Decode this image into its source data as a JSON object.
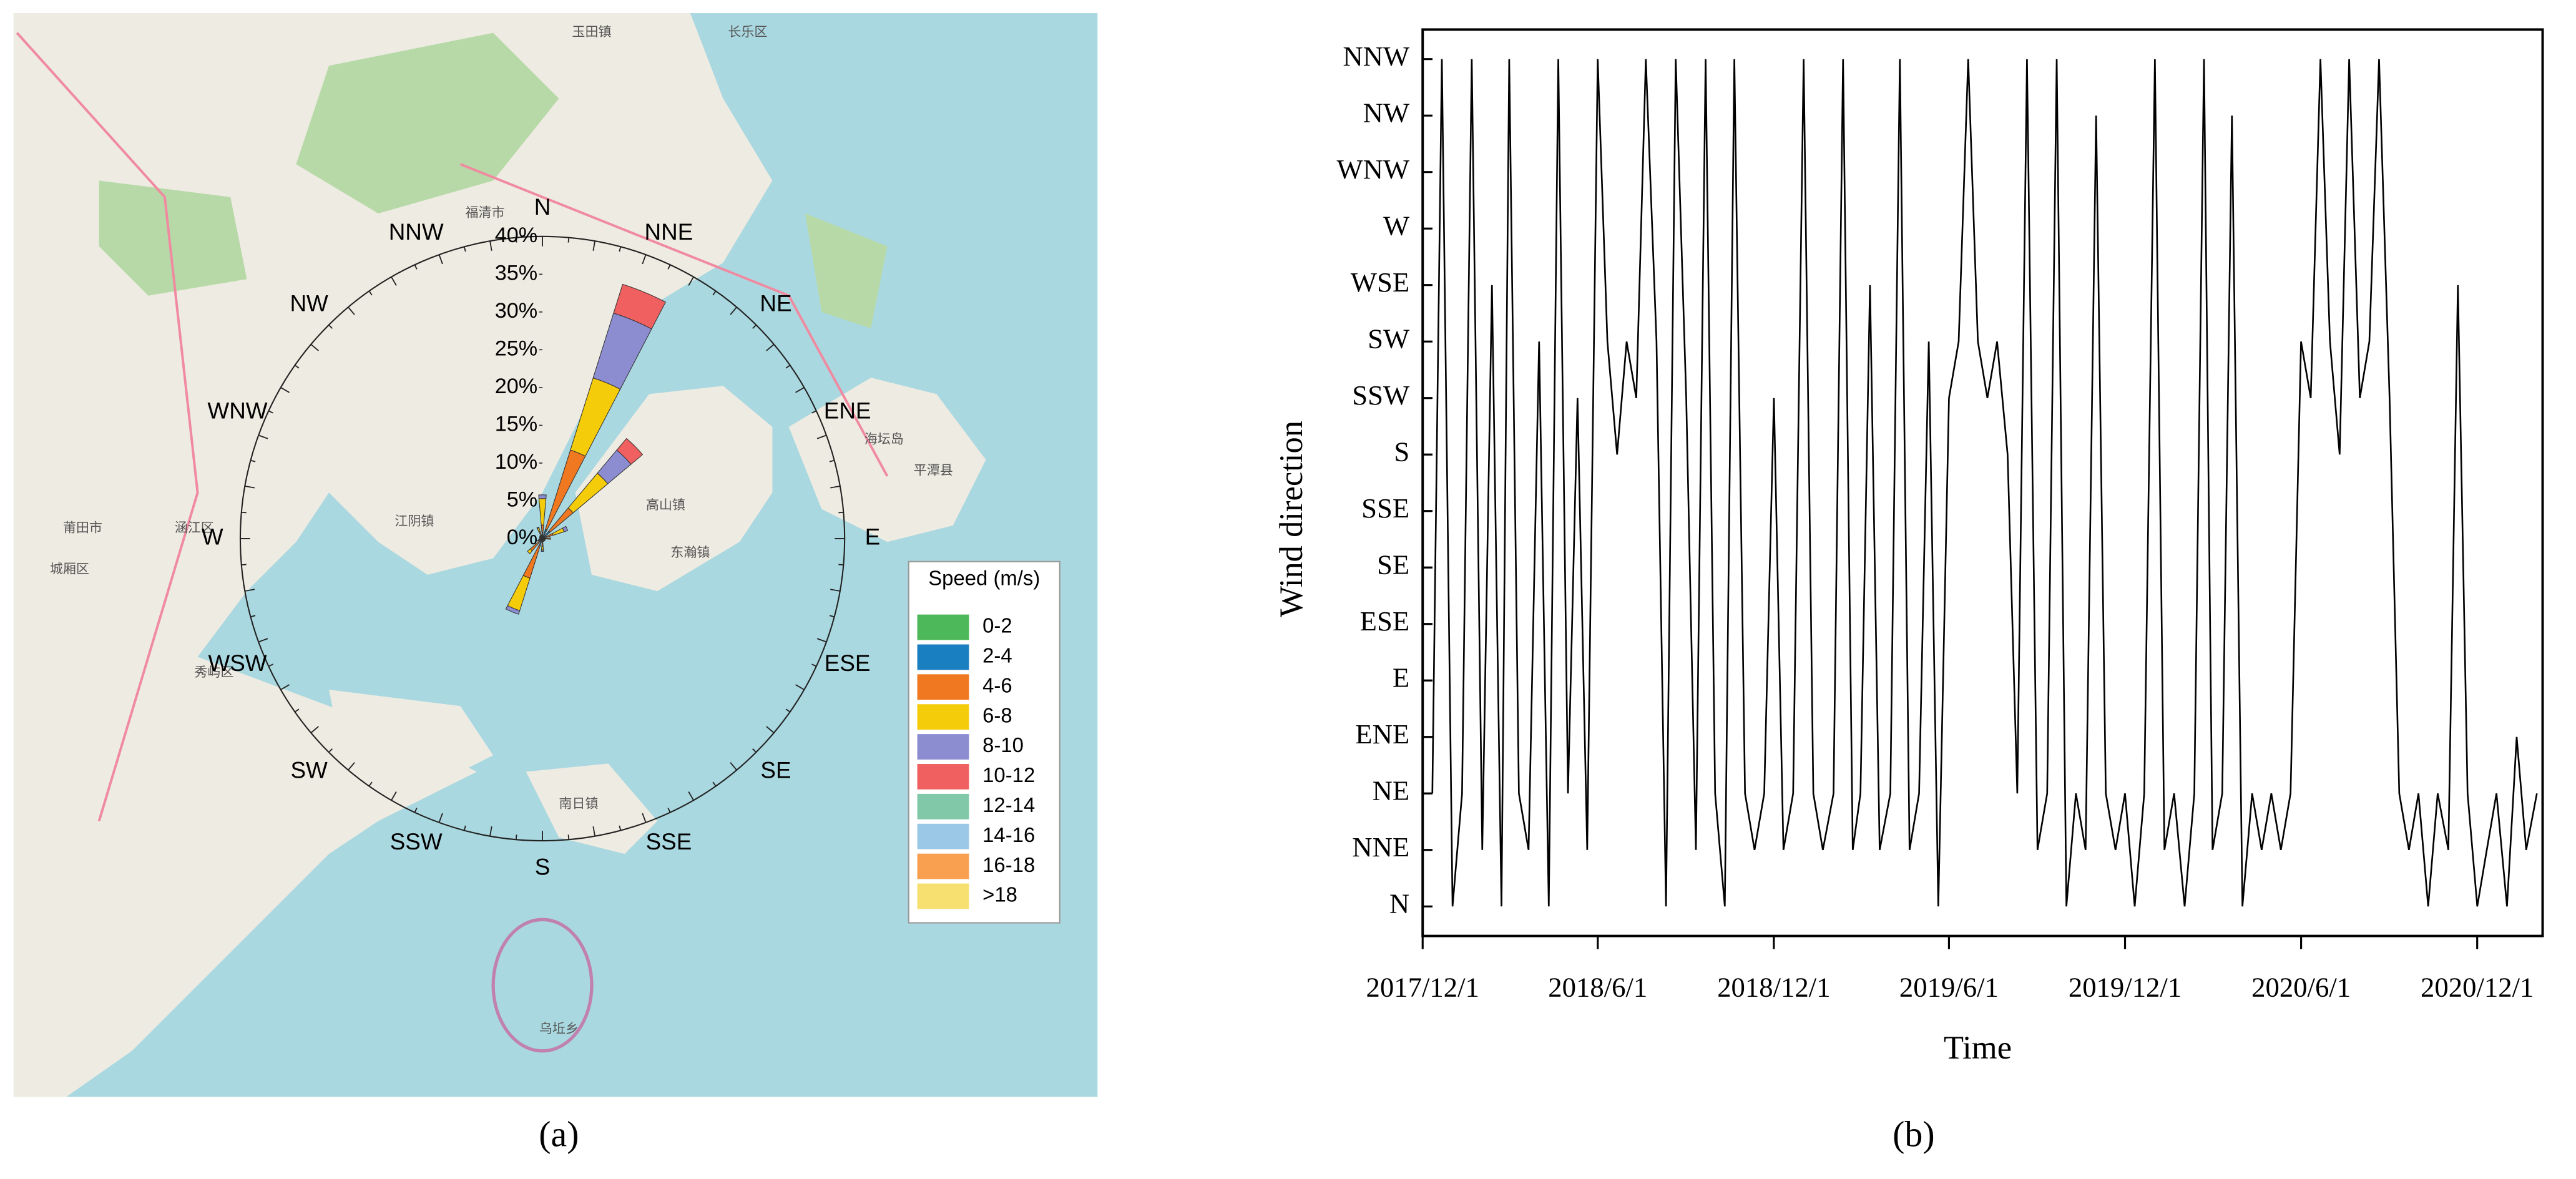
{
  "chart_data": [
    {
      "type": "windrose",
      "panel_label": "(a)",
      "directions": [
        "N",
        "NNE",
        "NE",
        "ENE",
        "E",
        "ESE",
        "SE",
        "SSE",
        "S",
        "SSW",
        "SW",
        "WSW",
        "W",
        "WNW",
        "NW",
        "NNW"
      ],
      "rlim": [
        0,
        40
      ],
      "rticks": [
        {
          "value": 0,
          "label": "0%"
        },
        {
          "value": 5,
          "label": "5%"
        },
        {
          "value": 10,
          "label": "10%"
        },
        {
          "value": 15,
          "label": "15%"
        },
        {
          "value": 20,
          "label": "20%"
        },
        {
          "value": 25,
          "label": "25%"
        },
        {
          "value": 30,
          "label": "30%"
        },
        {
          "value": 35,
          "label": "35%"
        },
        {
          "value": 40,
          "label": "40%"
        }
      ],
      "legend_title": "Speed (m/s)",
      "legend_position": "lower right",
      "series": [
        {
          "name": "0-2",
          "color": "#4db85a",
          "values": [
            0.3,
            0.3,
            0.3,
            0.2,
            0.2,
            0.1,
            0.1,
            0.1,
            0.2,
            0.2,
            0.2,
            0.1,
            0.1,
            0.1,
            0.1,
            0.2
          ]
        },
        {
          "name": "2-4",
          "color": "#1a7fc1",
          "values": [
            0.5,
            1,
            1,
            0.3,
            0.2,
            0.1,
            0.1,
            0.1,
            0.3,
            0.8,
            0.4,
            0.2,
            0.1,
            0.1,
            0.1,
            0.3
          ]
        },
        {
          "name": "4-6",
          "color": "#f07820",
          "values": [
            1,
            11,
            4,
            1,
            0.5,
            0.2,
            0.2,
            0.2,
            0.5,
            4.5,
            1.5,
            0.3,
            0.2,
            0.2,
            0.2,
            0.5
          ]
        },
        {
          "name": "6-8",
          "color": "#f5cc0a",
          "values": [
            3.5,
            10,
            6,
            1.5,
            0.2,
            0,
            0,
            0,
            0.5,
            4.5,
            0.5,
            0.1,
            0,
            0,
            0.1,
            0.5
          ]
        },
        {
          "name": "8-10",
          "color": "#8c8cd0",
          "values": [
            0.5,
            9,
            4,
            0.5,
            0,
            0,
            0,
            0,
            0.2,
            0.5,
            0,
            0,
            0,
            0,
            0,
            0.1
          ]
        },
        {
          "name": "10-12",
          "color": "#f06060",
          "values": [
            0,
            4,
            2,
            0,
            0,
            0,
            0,
            0,
            0,
            0,
            0,
            0,
            0,
            0,
            0,
            0
          ]
        },
        {
          "name": "12-14",
          "color": "#80c8a8",
          "values": [
            0,
            0,
            0,
            0,
            0,
            0,
            0,
            0,
            0,
            0,
            0,
            0,
            0,
            0,
            0,
            0
          ]
        },
        {
          "name": "14-16",
          "color": "#9cc8e8",
          "values": [
            0,
            0,
            0,
            0,
            0,
            0,
            0,
            0,
            0,
            0,
            0,
            0,
            0,
            0,
            0,
            0
          ]
        },
        {
          "name": "16-18",
          "color": "#f8a050",
          "values": [
            0,
            0,
            0,
            0,
            0,
            0,
            0,
            0,
            0,
            0,
            0,
            0,
            0,
            0,
            0,
            0
          ]
        },
        {
          "name": ">18",
          "color": "#f8e070",
          "values": [
            0,
            0,
            0,
            0,
            0,
            0,
            0,
            0,
            0,
            0,
            0,
            0,
            0,
            0,
            0,
            0
          ]
        }
      ],
      "map_labels": [
        {
          "text": "福清市",
          "x": 295,
          "y": 130
        },
        {
          "text": "莆田市",
          "x": 50,
          "y": 322
        },
        {
          "text": "涵江区",
          "x": 118,
          "y": 322
        },
        {
          "text": "城厢区",
          "x": 42,
          "y": 347
        },
        {
          "text": "秀屿区",
          "x": 130,
          "y": 410
        },
        {
          "text": "江阴镇",
          "x": 252,
          "y": 318
        },
        {
          "text": "高山镇",
          "x": 405,
          "y": 308
        },
        {
          "text": "东瀚镇",
          "x": 420,
          "y": 337
        },
        {
          "text": "平潭县",
          "x": 568,
          "y": 287
        },
        {
          "text": "海坛岛",
          "x": 538,
          "y": 268
        },
        {
          "text": "南日镇",
          "x": 352,
          "y": 490
        },
        {
          "text": "乌坵乡",
          "x": 340,
          "y": 627
        },
        {
          "text": "玉田镇",
          "x": 360,
          "y": 20
        },
        {
          "text": "长乐区",
          "x": 455,
          "y": 20
        }
      ]
    },
    {
      "type": "line",
      "panel_label": "(b)",
      "x_label": "Time",
      "y_label": "Wind direction",
      "color": "#000000",
      "xlim": [
        "2017/12/1",
        "2021/2/7"
      ],
      "xticks": [
        "2017/12/1",
        "2018/6/1",
        "2018/12/1",
        "2019/6/1",
        "2019/12/1",
        "2020/6/1",
        "2020/12/1"
      ],
      "yticks": [
        "N",
        "NNE",
        "NE",
        "ENE",
        "E",
        "ESE",
        "SE",
        "SSE",
        "S",
        "SSW",
        "SW",
        "WSE",
        "W",
        "WNW",
        "NW",
        "NNW"
      ],
      "x": [
        "2017/12/11",
        "2017/12/21",
        "2018/1/1",
        "2018/1/11",
        "2018/1/21",
        "2018/2/1",
        "2018/2/11",
        "2018/2/21",
        "2018/3/1",
        "2018/3/11",
        "2018/3/21",
        "2018/4/1",
        "2018/4/11",
        "2018/4/21",
        "2018/5/1",
        "2018/5/11",
        "2018/5/21",
        "2018/6/1",
        "2018/6/11",
        "2018/6/21",
        "2018/7/1",
        "2018/7/11",
        "2018/7/21",
        "2018/8/1",
        "2018/8/11",
        "2018/8/21",
        "2018/9/1",
        "2018/9/11",
        "2018/9/21",
        "2018/10/1",
        "2018/10/11",
        "2018/10/21",
        "2018/11/1",
        "2018/11/11",
        "2018/11/21",
        "2018/12/1",
        "2018/12/11",
        "2018/12/21",
        "2019/1/1",
        "2019/1/11",
        "2019/1/21",
        "2019/2/1",
        "2019/2/11",
        "2019/2/21",
        "2019/3/1",
        "2019/3/11",
        "2019/3/21",
        "2019/4/1",
        "2019/4/11",
        "2019/4/21",
        "2019/5/1",
        "2019/5/11",
        "2019/5/21",
        "2019/6/1",
        "2019/6/11",
        "2019/6/21",
        "2019/7/1",
        "2019/7/11",
        "2019/7/21",
        "2019/8/1",
        "2019/8/11",
        "2019/8/21",
        "2019/9/1",
        "2019/9/11",
        "2019/9/21",
        "2019/10/1",
        "2019/10/11",
        "2019/10/21",
        "2019/11/1",
        "2019/11/11",
        "2019/11/21",
        "2019/12/1",
        "2019/12/11",
        "2019/12/21",
        "2020/1/1",
        "2020/1/11",
        "2020/1/21",
        "2020/2/1",
        "2020/2/11",
        "2020/2/21",
        "2020/3/1",
        "2020/3/11",
        "2020/3/21",
        "2020/4/1",
        "2020/4/11",
        "2020/4/21",
        "2020/5/1",
        "2020/5/11",
        "2020/5/21",
        "2020/6/1",
        "2020/6/11",
        "2020/6/21",
        "2020/7/1",
        "2020/7/11",
        "2020/7/21",
        "2020/8/1",
        "2020/8/11",
        "2020/8/21",
        "2020/9/1",
        "2020/9/11",
        "2020/9/21",
        "2020/10/1",
        "2020/10/11",
        "2020/10/21",
        "2020/11/1",
        "2020/11/11",
        "2020/11/21",
        "2020/12/1",
        "2020/12/11",
        "2020/12/21",
        "2021/1/1",
        "2021/1/11",
        "2021/1/21",
        "2021/2/1"
      ],
      "values": [
        "NE",
        "NNW",
        "N",
        "NE",
        "NNW",
        "NNE",
        "WSE",
        "N",
        "NNW",
        "NE",
        "NNE",
        "SW",
        "N",
        "NNW",
        "NE",
        "SSW",
        "NNE",
        "NNW",
        "SW",
        "S",
        "SW",
        "SSW",
        "NNW",
        "SW",
        "N",
        "NNW",
        "SSW",
        "NNE",
        "NNW",
        "NE",
        "N",
        "NNW",
        "NE",
        "NNE",
        "NE",
        "SSW",
        "NNE",
        "NE",
        "NNW",
        "NE",
        "NNE",
        "NE",
        "NNW",
        "NNE",
        "NE",
        "WSE",
        "NNE",
        "NE",
        "NNW",
        "NNE",
        "NE",
        "SW",
        "N",
        "SSW",
        "SW",
        "NNW",
        "SW",
        "SSW",
        "SW",
        "S",
        "NE",
        "NNW",
        "NNE",
        "NE",
        "NNW",
        "N",
        "NE",
        "NNE",
        "NW",
        "NE",
        "NNE",
        "NE",
        "N",
        "NE",
        "NNW",
        "NNE",
        "NE",
        "N",
        "NE",
        "NNW",
        "NNE",
        "NE",
        "NW",
        "N",
        "NE",
        "NNE",
        "NE",
        "NNE",
        "NE",
        "SW",
        "SSW",
        "NNW",
        "SW",
        "S",
        "NNW",
        "SSW",
        "SW",
        "NNW",
        "SSW",
        "NE",
        "NNE",
        "NE",
        "N",
        "NE",
        "NNE",
        "WSE",
        "NE",
        "N",
        "NNE",
        "NE",
        "N",
        "ENE",
        "NNE",
        "NE"
      ]
    }
  ]
}
